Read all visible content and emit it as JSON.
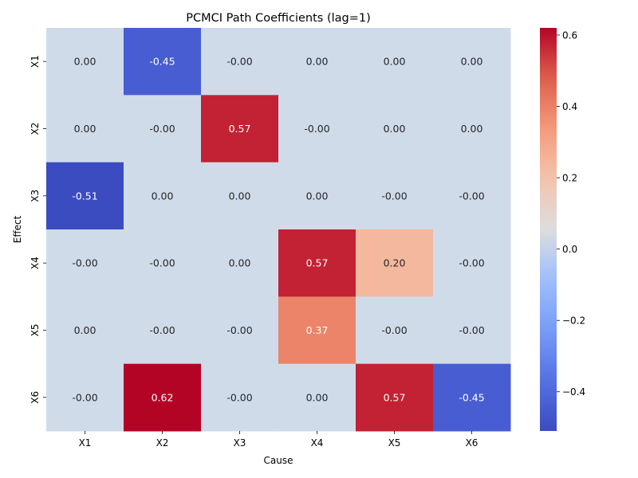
{
  "chart_data": {
    "type": "heatmap",
    "title": "PCMCI Path Coefficients (lag=1)",
    "xlabel": "Cause",
    "ylabel": "Effect",
    "x_categories": [
      "X1",
      "X2",
      "X3",
      "X4",
      "X5",
      "X6"
    ],
    "y_categories": [
      "X1",
      "X2",
      "X3",
      "X4",
      "X5",
      "X6"
    ],
    "cell_labels": [
      [
        "0.00",
        "-0.45",
        "-0.00",
        "0.00",
        "0.00",
        "0.00"
      ],
      [
        "0.00",
        "-0.00",
        "0.57",
        "-0.00",
        "0.00",
        "0.00"
      ],
      [
        "-0.51",
        "0.00",
        "0.00",
        "0.00",
        "-0.00",
        "-0.00"
      ],
      [
        "-0.00",
        "-0.00",
        "0.00",
        "0.57",
        "0.20",
        "-0.00"
      ],
      [
        "0.00",
        "-0.00",
        "-0.00",
        "0.37",
        "-0.00",
        "-0.00"
      ],
      [
        "-0.00",
        "0.62",
        "-0.00",
        "0.00",
        "0.57",
        "-0.45"
      ]
    ],
    "values": [
      [
        0.0,
        -0.45,
        0.0,
        0.0,
        0.0,
        0.0
      ],
      [
        0.0,
        0.0,
        0.57,
        0.0,
        0.0,
        0.0
      ],
      [
        -0.51,
        0.0,
        0.0,
        0.0,
        0.0,
        0.0
      ],
      [
        0.0,
        0.0,
        0.0,
        0.57,
        0.2,
        0.0
      ],
      [
        0.0,
        0.0,
        0.0,
        0.37,
        0.0,
        0.0
      ],
      [
        0.0,
        0.62,
        0.0,
        0.0,
        0.57,
        -0.45
      ]
    ],
    "colormap": "coolwarm",
    "vmin": -0.51,
    "vmax": 0.62,
    "colorbar_ticks": [
      "−0.4",
      "−0.2",
      "0.0",
      "0.2",
      "0.4",
      "0.6"
    ],
    "colorbar_tick_values": [
      -0.4,
      -0.2,
      0.0,
      0.2,
      0.4,
      0.6
    ],
    "grid": false,
    "legend": "colorbar-right"
  }
}
